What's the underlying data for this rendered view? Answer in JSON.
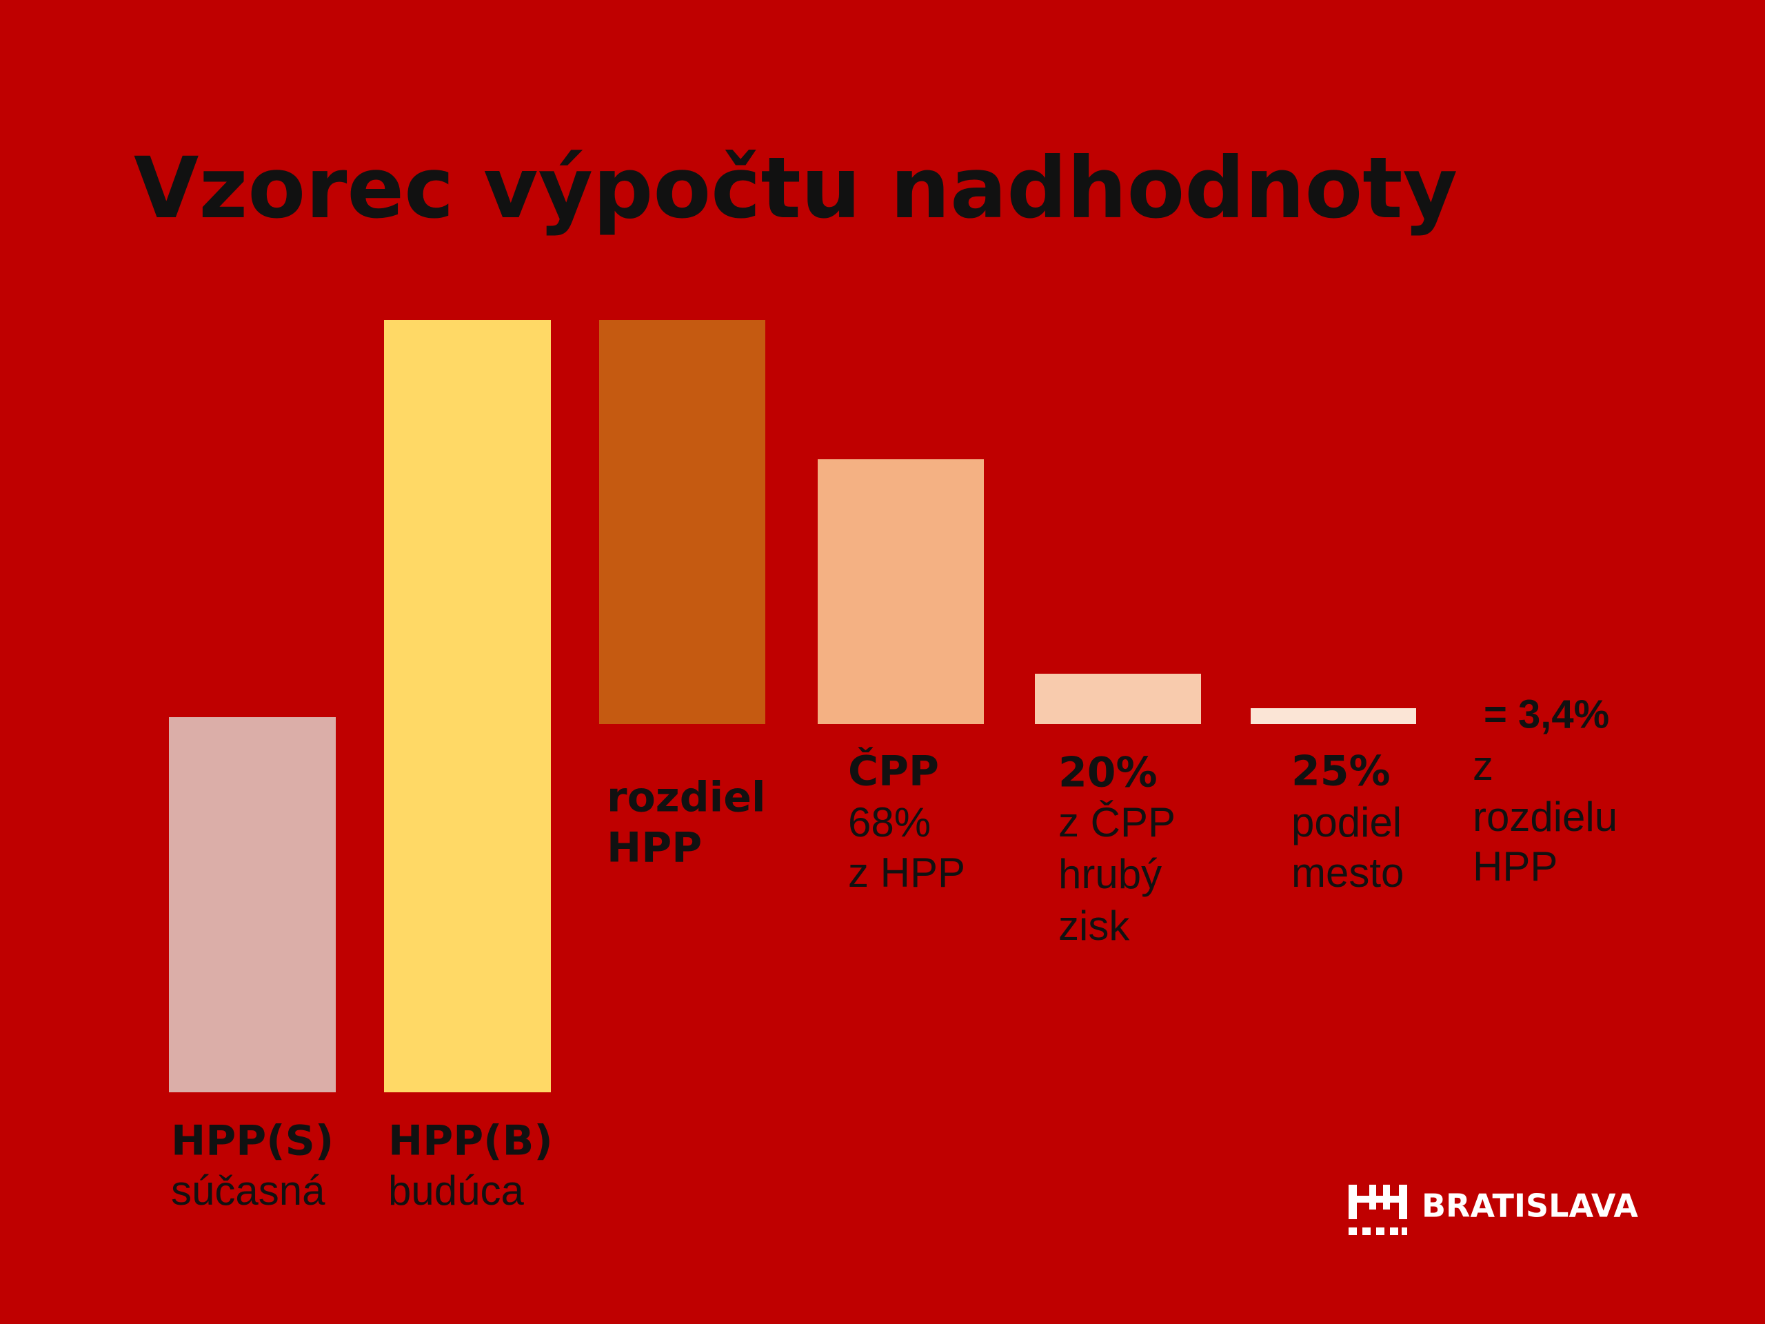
{
  "title": "Vzorec výpočtu nadhodnoty",
  "columns": [
    {
      "heading": "HPP(S)",
      "lines": [
        "súčasná"
      ]
    },
    {
      "heading": "HPP(B)",
      "lines": [
        "budúca"
      ]
    },
    {
      "heading": "rozdiel",
      "lines": [
        "HPP"
      ]
    },
    {
      "heading": "ČPP",
      "lines": [
        "68%",
        "z HPP"
      ]
    },
    {
      "heading": "20%",
      "lines": [
        "z ČPP",
        "hrubý",
        "zisk"
      ]
    },
    {
      "heading": "25%",
      "lines": [
        "podiel",
        "mesto"
      ]
    }
  ],
  "result": {
    "heading": "= 3,4%",
    "lines": [
      "z",
      "rozdielu",
      "HPP"
    ]
  },
  "logo": "BRATISLAVA"
}
